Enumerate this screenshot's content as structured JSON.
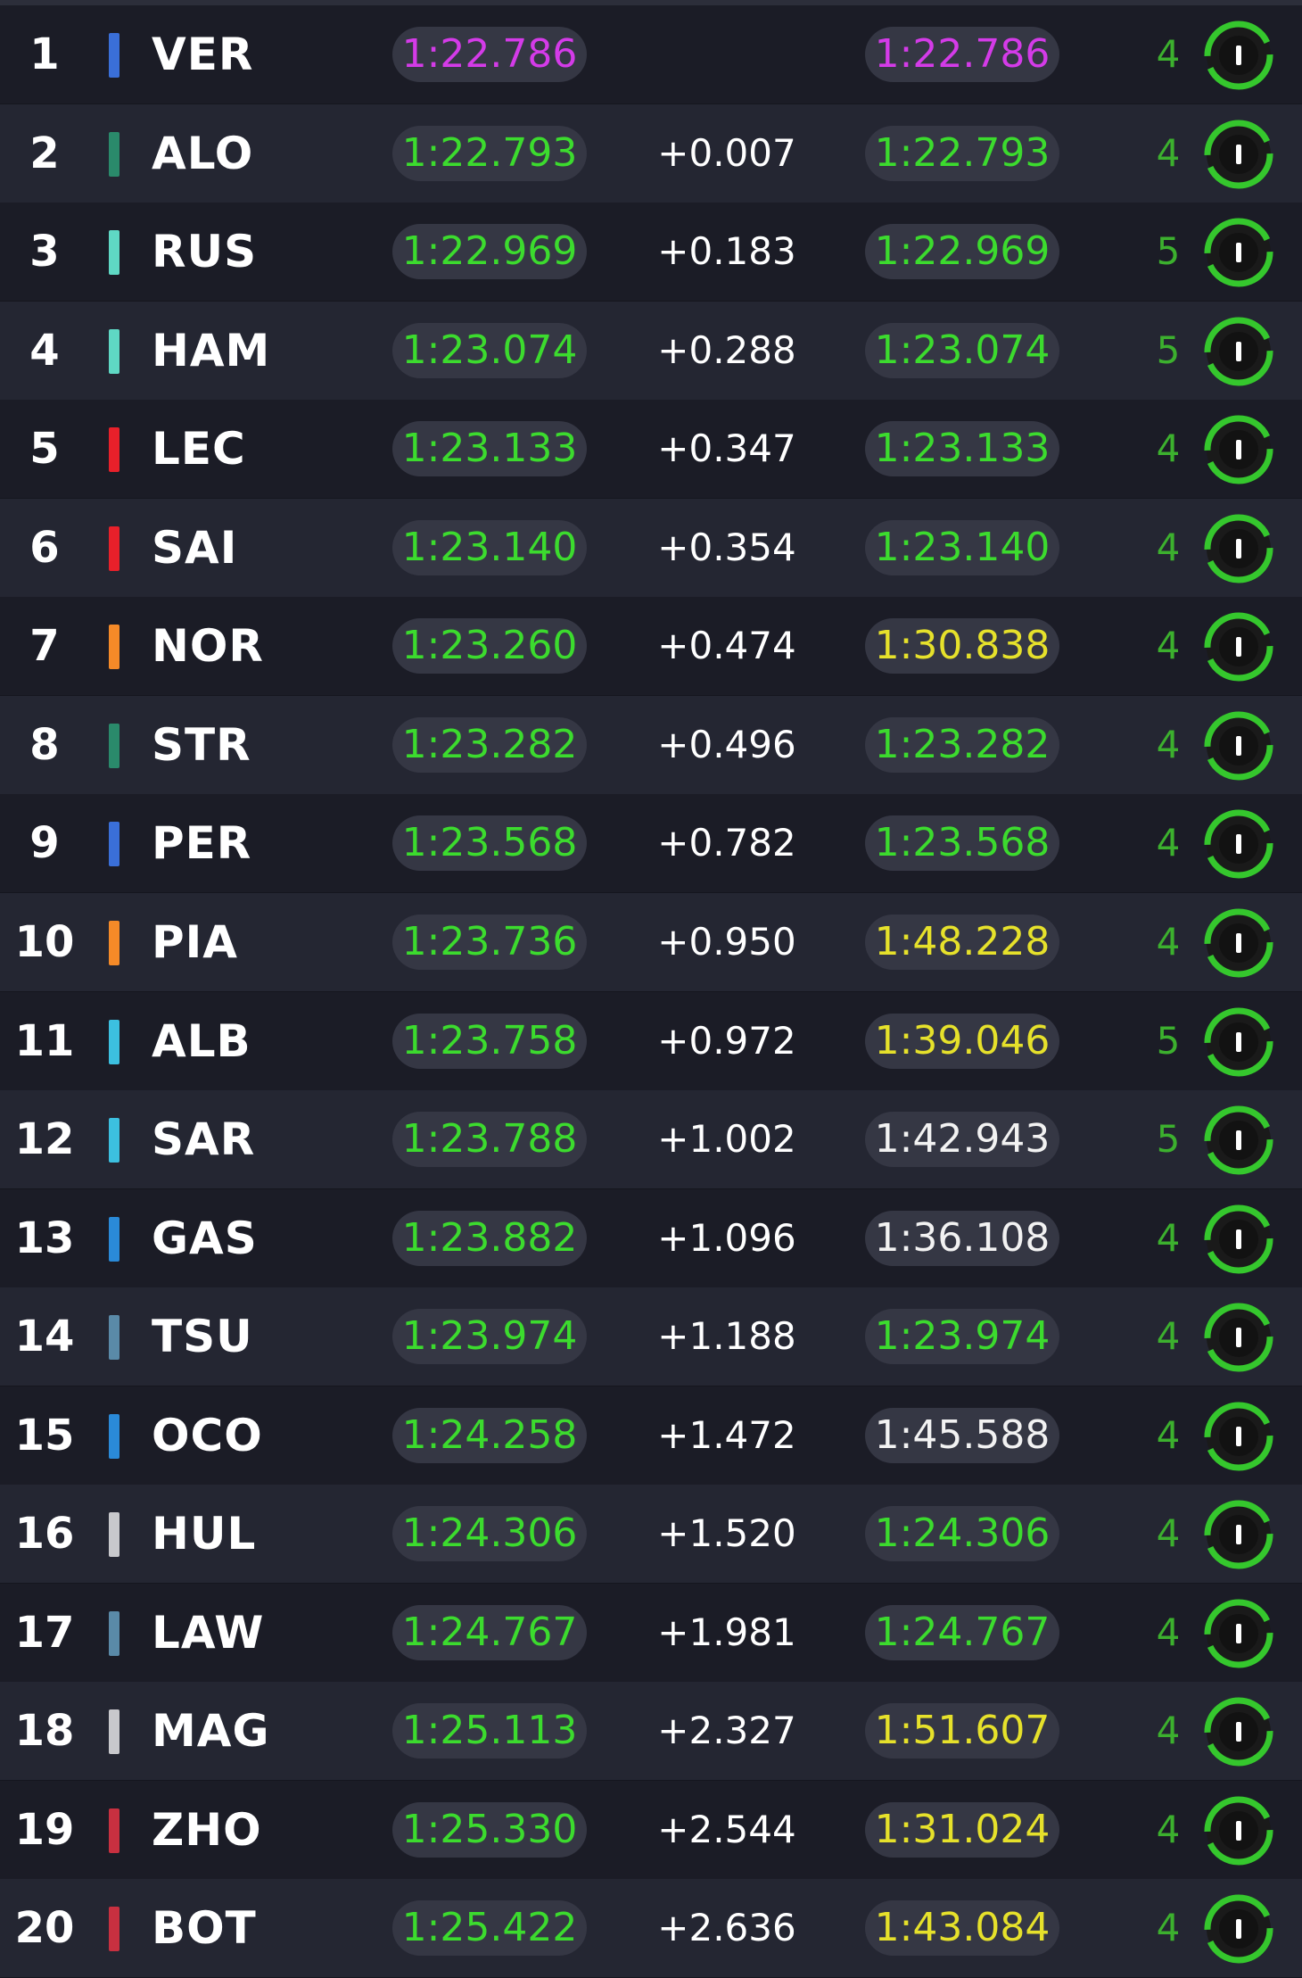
{
  "colors": {
    "purple": "#d43be8",
    "green": "#3cdb2e",
    "yellow": "#e6e12b",
    "white": "#f2f2f2",
    "laps_green": "#3cb02e",
    "tyre_ring": "#35c72d"
  },
  "rows": [
    {
      "pos": "1",
      "code": "VER",
      "team_color": "#3a6fd8",
      "best": "1:22.786",
      "best_color": "purple",
      "gap": "",
      "last": "1:22.786",
      "last_color": "purple",
      "laps": "4"
    },
    {
      "pos": "2",
      "code": "ALO",
      "team_color": "#2a8a6b",
      "best": "1:22.793",
      "best_color": "green",
      "gap": "+0.007",
      "last": "1:22.793",
      "last_color": "green",
      "laps": "4"
    },
    {
      "pos": "3",
      "code": "RUS",
      "team_color": "#5fd8c4",
      "best": "1:22.969",
      "best_color": "green",
      "gap": "+0.183",
      "last": "1:22.969",
      "last_color": "green",
      "laps": "5"
    },
    {
      "pos": "4",
      "code": "HAM",
      "team_color": "#5fd8c4",
      "best": "1:23.074",
      "best_color": "green",
      "gap": "+0.288",
      "last": "1:23.074",
      "last_color": "green",
      "laps": "5"
    },
    {
      "pos": "5",
      "code": "LEC",
      "team_color": "#e8202a",
      "best": "1:23.133",
      "best_color": "green",
      "gap": "+0.347",
      "last": "1:23.133",
      "last_color": "green",
      "laps": "4"
    },
    {
      "pos": "6",
      "code": "SAI",
      "team_color": "#e8202a",
      "best": "1:23.140",
      "best_color": "green",
      "gap": "+0.354",
      "last": "1:23.140",
      "last_color": "green",
      "laps": "4"
    },
    {
      "pos": "7",
      "code": "NOR",
      "team_color": "#f58a28",
      "best": "1:23.260",
      "best_color": "green",
      "gap": "+0.474",
      "last": "1:30.838",
      "last_color": "yellow",
      "laps": "4"
    },
    {
      "pos": "8",
      "code": "STR",
      "team_color": "#2a8a6b",
      "best": "1:23.282",
      "best_color": "green",
      "gap": "+0.496",
      "last": "1:23.282",
      "last_color": "green",
      "laps": "4"
    },
    {
      "pos": "9",
      "code": "PER",
      "team_color": "#3a6fd8",
      "best": "1:23.568",
      "best_color": "green",
      "gap": "+0.782",
      "last": "1:23.568",
      "last_color": "green",
      "laps": "4"
    },
    {
      "pos": "10",
      "code": "PIA",
      "team_color": "#f58a28",
      "best": "1:23.736",
      "best_color": "green",
      "gap": "+0.950",
      "last": "1:48.228",
      "last_color": "yellow",
      "laps": "4"
    },
    {
      "pos": "11",
      "code": "ALB",
      "team_color": "#3cc0e0",
      "best": "1:23.758",
      "best_color": "green",
      "gap": "+0.972",
      "last": "1:39.046",
      "last_color": "yellow",
      "laps": "5"
    },
    {
      "pos": "12",
      "code": "SAR",
      "team_color": "#3cc0e0",
      "best": "1:23.788",
      "best_color": "green",
      "gap": "+1.002",
      "last": "1:42.943",
      "last_color": "white",
      "laps": "5"
    },
    {
      "pos": "13",
      "code": "GAS",
      "team_color": "#2a8ad8",
      "best": "1:23.882",
      "best_color": "green",
      "gap": "+1.096",
      "last": "1:36.108",
      "last_color": "white",
      "laps": "4"
    },
    {
      "pos": "14",
      "code": "TSU",
      "team_color": "#5a8aa8",
      "best": "1:23.974",
      "best_color": "green",
      "gap": "+1.188",
      "last": "1:23.974",
      "last_color": "green",
      "laps": "4"
    },
    {
      "pos": "15",
      "code": "OCO",
      "team_color": "#2a8ad8",
      "best": "1:24.258",
      "best_color": "green",
      "gap": "+1.472",
      "last": "1:45.588",
      "last_color": "white",
      "laps": "4"
    },
    {
      "pos": "16",
      "code": "HUL",
      "team_color": "#c8c8cc",
      "best": "1:24.306",
      "best_color": "green",
      "gap": "+1.520",
      "last": "1:24.306",
      "last_color": "green",
      "laps": "4"
    },
    {
      "pos": "17",
      "code": "LAW",
      "team_color": "#5a8aa8",
      "best": "1:24.767",
      "best_color": "green",
      "gap": "+1.981",
      "last": "1:24.767",
      "last_color": "green",
      "laps": "4"
    },
    {
      "pos": "18",
      "code": "MAG",
      "team_color": "#c8c8cc",
      "best": "1:25.113",
      "best_color": "green",
      "gap": "+2.327",
      "last": "1:51.607",
      "last_color": "yellow",
      "laps": "4"
    },
    {
      "pos": "19",
      "code": "ZHO",
      "team_color": "#c83040",
      "best": "1:25.330",
      "best_color": "green",
      "gap": "+2.544",
      "last": "1:31.024",
      "last_color": "yellow",
      "laps": "4"
    },
    {
      "pos": "20",
      "code": "BOT",
      "team_color": "#c83040",
      "best": "1:25.422",
      "best_color": "green",
      "gap": "+2.636",
      "last": "1:43.084",
      "last_color": "yellow",
      "laps": "4"
    }
  ]
}
